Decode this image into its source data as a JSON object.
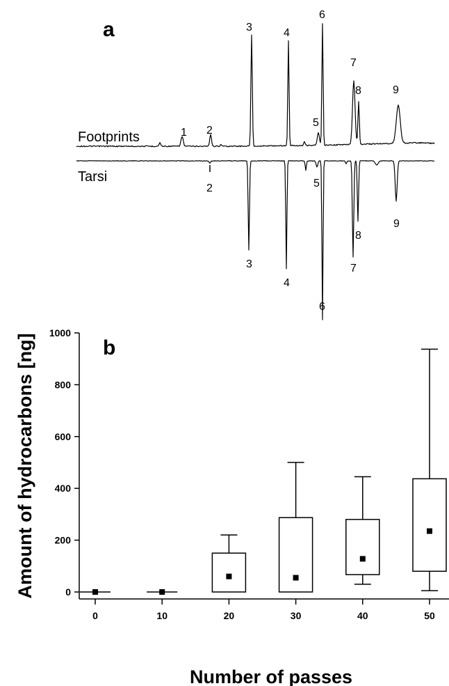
{
  "panel_a": {
    "label": "a",
    "top_trace_label": "Footprints",
    "bottom_trace_label": "Tarsi",
    "top_peak_labels": [
      "1",
      "2",
      "3",
      "4",
      "5",
      "6",
      "7",
      "8",
      "9"
    ],
    "bottom_peak_labels": [
      "2",
      "3",
      "4",
      "5",
      "6",
      "7",
      "8",
      "9"
    ]
  },
  "panel_b": {
    "label": "b"
  },
  "chart_data": [
    {
      "type": "line",
      "panel": "a",
      "x": [],
      "series": [
        {
          "name": "Footprints",
          "peaks": [
            "1",
            "2",
            "3",
            "4",
            "5",
            "6",
            "7",
            "8",
            "9"
          ]
        },
        {
          "name": "Tarsi",
          "peaks": [
            "2",
            "3",
            "4",
            "5",
            "6",
            "7",
            "8",
            "9"
          ]
        }
      ],
      "axes_visible": false
    },
    {
      "type": "box",
      "panel": "b",
      "xlabel": "Number of passes",
      "ylabel": "Amount of hydrocarbons [ng]",
      "categories": [
        "0",
        "10",
        "20",
        "30",
        "40",
        "50"
      ],
      "ylim": [
        0,
        1000
      ],
      "yticks": [
        "0",
        "200",
        "400",
        "600",
        "800",
        "1000"
      ],
      "grid": false,
      "boxes": [
        {
          "x": "0",
          "whisker_low": 0,
          "q1": 0,
          "q3": 0,
          "whisker_high": 0,
          "marker": 0
        },
        {
          "x": "10",
          "whisker_low": 0,
          "q1": 0,
          "q3": 0,
          "whisker_high": 0,
          "marker": 0
        },
        {
          "x": "20",
          "whisker_low": 0,
          "q1": 0,
          "q3": 150,
          "whisker_high": 220,
          "marker": 60
        },
        {
          "x": "30",
          "whisker_low": 0,
          "q1": 0,
          "q3": 287,
          "whisker_high": 500,
          "marker": 55
        },
        {
          "x": "40",
          "whisker_low": 30,
          "q1": 67,
          "q3": 280,
          "whisker_high": 445,
          "marker": 128
        },
        {
          "x": "50",
          "whisker_low": 5,
          "q1": 80,
          "q3": 437,
          "whisker_high": 937,
          "marker": 235
        }
      ]
    }
  ]
}
